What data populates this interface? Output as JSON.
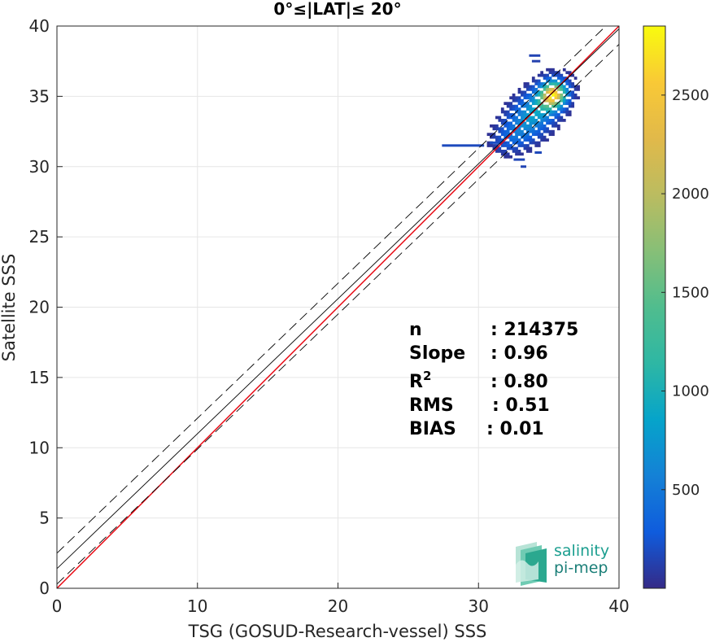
{
  "chart_data": {
    "type": "heatmap",
    "title": "0°≤|LAT|≤ 20°",
    "xlabel": "TSG (GOSUD-Research-vessel) SSS",
    "ylabel": "Satellite SSS",
    "xlim": [
      0,
      40
    ],
    "ylim": [
      0,
      40
    ],
    "xticks": [
      "0",
      "10",
      "20",
      "30",
      "40"
    ],
    "yticks": [
      "0",
      "5",
      "10",
      "15",
      "20",
      "25",
      "30",
      "35",
      "40"
    ],
    "grid": true,
    "colorbar": {
      "range": [
        0,
        2850
      ],
      "ticks": [
        "500",
        "1000",
        "1500",
        "2000",
        "2500"
      ],
      "colormap": "parula"
    },
    "reference_lines": [
      {
        "name": "1:1",
        "intercept": 0.0,
        "slope": 1.0,
        "color": "#e8000b",
        "style": "solid"
      },
      {
        "name": "fit",
        "intercept": 1.4,
        "slope": 0.96,
        "color": "#000000",
        "style": "solid"
      },
      {
        "name": "upper",
        "intercept": 2.5,
        "slope": 0.96,
        "color": "#000000",
        "style": "dashed"
      },
      {
        "name": "lower",
        "intercept": 0.3,
        "slope": 0.96,
        "color": "#000000",
        "style": "dashed"
      }
    ],
    "density_blobs": [
      {
        "x": 35.2,
        "y": 35.0,
        "sx": 0.6,
        "sy": 0.55,
        "rot": -45,
        "peak": 2400
      },
      {
        "x": 34.3,
        "y": 34.2,
        "sx": 1.3,
        "sy": 0.8,
        "rot": -45,
        "peak": 700
      },
      {
        "x": 33.2,
        "y": 33.0,
        "sx": 1.3,
        "sy": 0.9,
        "rot": -40,
        "peak": 320
      },
      {
        "x": 32.3,
        "y": 32.0,
        "sx": 0.9,
        "sy": 0.6,
        "rot": -30,
        "peak": 220
      }
    ],
    "outliers": [
      {
        "x": 27.4,
        "y": 31.5,
        "w": 3.0,
        "v": 180
      },
      {
        "x": 30.8,
        "y": 31.7,
        "w": 1.2,
        "v": 200
      },
      {
        "x": 33.6,
        "y": 37.9,
        "w": 0.8,
        "v": 150
      },
      {
        "x": 33.8,
        "y": 37.5,
        "w": 0.6,
        "v": 130
      },
      {
        "x": 32.5,
        "y": 30.5,
        "w": 0.8,
        "v": 160
      },
      {
        "x": 33.0,
        "y": 30.0,
        "w": 0.4,
        "v": 150
      },
      {
        "x": 34.0,
        "y": 31.0,
        "w": 0.5,
        "v": 170
      }
    ],
    "stats": [
      {
        "label": "n",
        "value": ": 214375"
      },
      {
        "label": "Slope",
        "value": ": 0.96"
      },
      {
        "label": "R",
        "sup": "2",
        "value": ": 0.80"
      },
      {
        "label": "RMS",
        "value": ": 0.51"
      },
      {
        "label": "BIAS",
        "value": ": 0.01"
      }
    ]
  },
  "logo": {
    "line1": "salinity",
    "line2": "pi-mep"
  }
}
